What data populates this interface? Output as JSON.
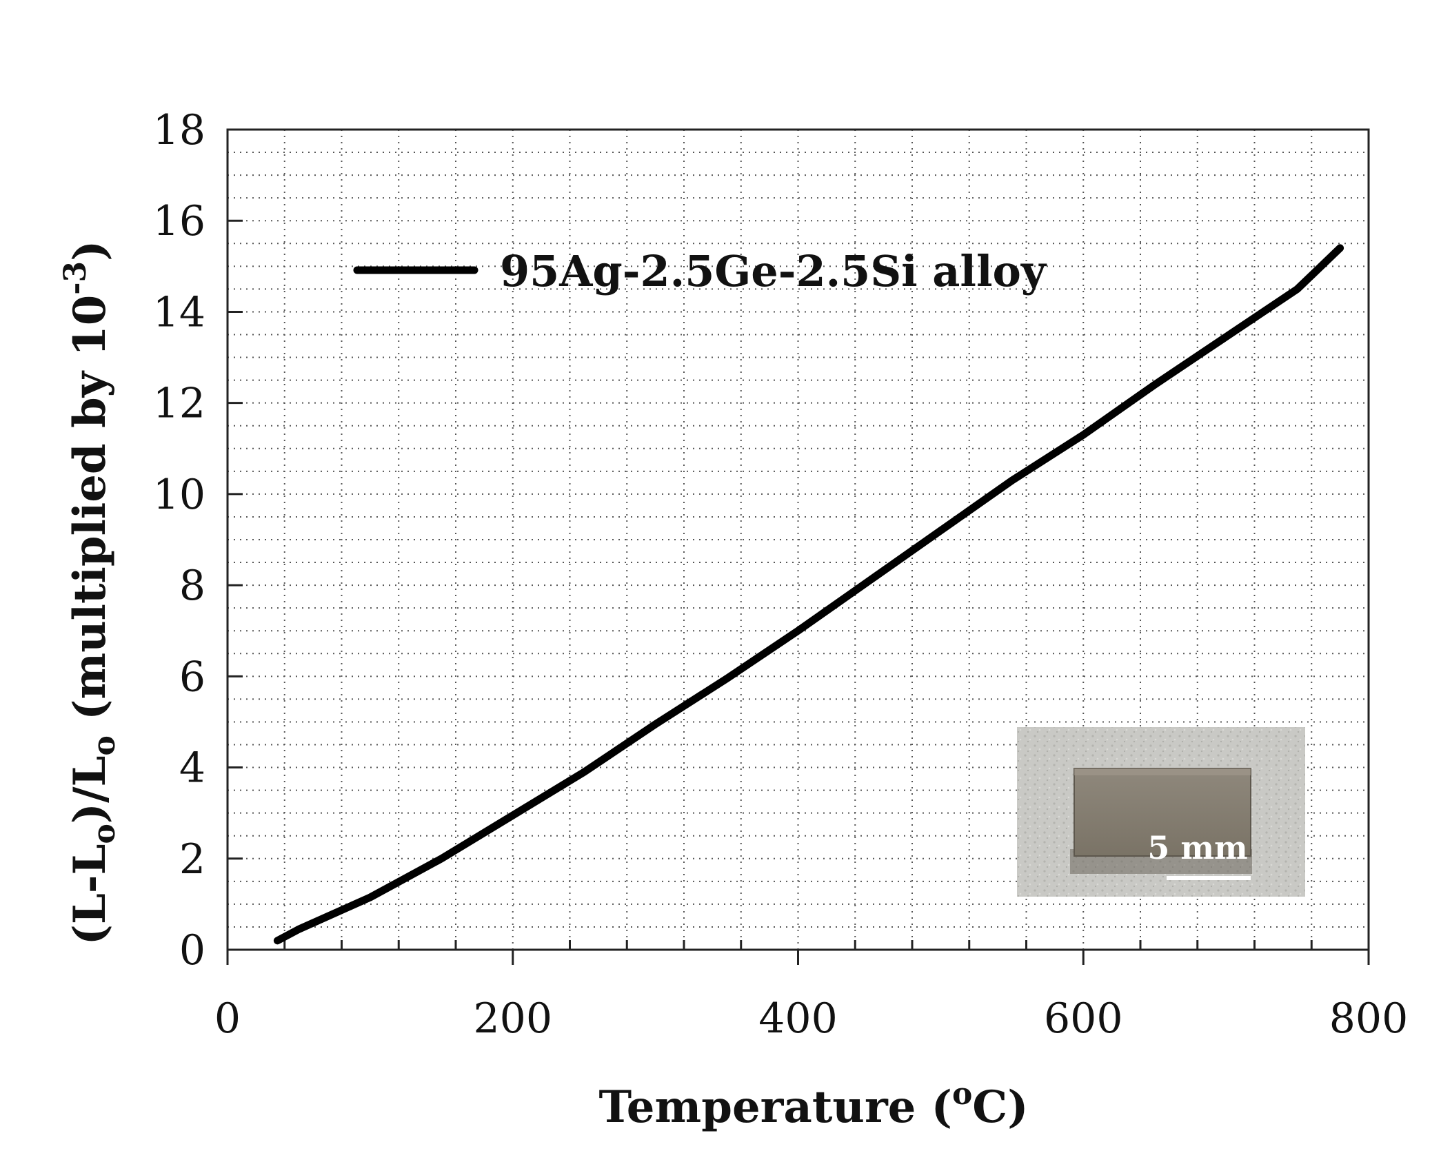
{
  "chart_data": {
    "type": "line",
    "xlabel_main": "Temperature (",
    "xlabel_sup": "o",
    "xlabel_end": "C)",
    "ylabel_parts": {
      "p1": "(L-L",
      "sub1": "o",
      "p2": ")/L",
      "sub2": "o",
      "p3": " (multiplied by 10",
      "sup": "-3",
      "p4": ")"
    },
    "xlim": [
      0,
      800
    ],
    "ylim": [
      0,
      18
    ],
    "x_ticks": [
      0,
      200,
      400,
      600,
      800
    ],
    "y_ticks": [
      0,
      2,
      4,
      6,
      8,
      10,
      12,
      14,
      16,
      18
    ],
    "grid": true,
    "legend_position": "upper-left",
    "series": [
      {
        "name": "95Ag-2.5Ge-2.5Si alloy",
        "color": "#000000",
        "x": [
          35,
          50,
          100,
          150,
          200,
          250,
          300,
          350,
          400,
          450,
          500,
          550,
          600,
          650,
          700,
          750,
          780
        ],
        "y": [
          0.2,
          0.45,
          1.15,
          2.0,
          2.95,
          3.9,
          4.95,
          5.95,
          7.0,
          8.1,
          9.2,
          10.3,
          11.3,
          12.4,
          13.45,
          14.5,
          15.4
        ]
      }
    ],
    "inset": {
      "description_icon": "sample-photo",
      "scale_label": "5 mm"
    }
  }
}
